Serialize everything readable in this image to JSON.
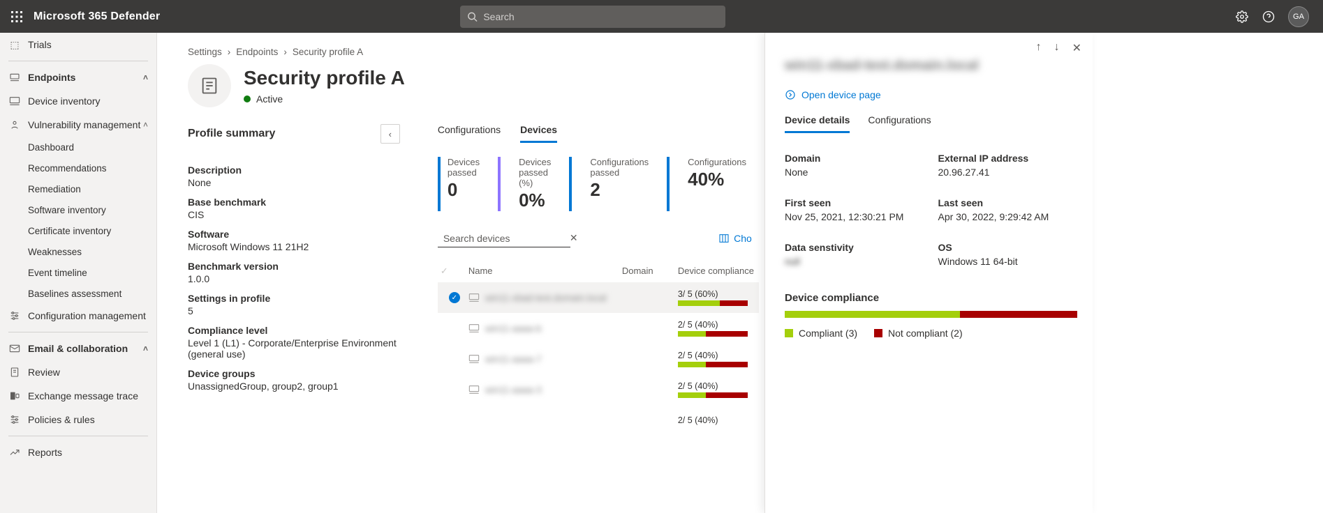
{
  "topbar": {
    "brand": "Microsoft 365 Defender",
    "search_placeholder": "Search",
    "avatar_initials": "GA"
  },
  "sidebar": {
    "trials": "Trials",
    "endpoints": "Endpoints",
    "device_inventory": "Device inventory",
    "vuln_mgmt": "Vulnerability management",
    "vuln_children": {
      "dashboard": "Dashboard",
      "recommendations": "Recommendations",
      "remediation": "Remediation",
      "software_inventory": "Software inventory",
      "certificate_inventory": "Certificate inventory",
      "weaknesses": "Weaknesses",
      "event_timeline": "Event timeline",
      "baselines": "Baselines assessment"
    },
    "config_mgmt": "Configuration management",
    "email_collab": "Email & collaboration",
    "review": "Review",
    "exchange_trace": "Exchange message trace",
    "policies_rules": "Policies & rules",
    "reports": "Reports"
  },
  "breadcrumb": {
    "a": "Settings",
    "b": "Endpoints",
    "c": "Security profile A"
  },
  "page": {
    "title": "Security profile A",
    "status": "Active"
  },
  "summary": {
    "heading": "Profile summary",
    "description_label": "Description",
    "description_value": "None",
    "benchmark_label": "Base benchmark",
    "benchmark_value": "CIS",
    "software_label": "Software",
    "software_value": "Microsoft Windows 11 21H2",
    "version_label": "Benchmark version",
    "version_value": "1.0.0",
    "settings_label": "Settings in profile",
    "settings_value": "5",
    "compliance_label": "Compliance level",
    "compliance_value": "Level 1 (L1) - Corporate/Enterprise Environment (general use)",
    "groups_label": "Device groups",
    "groups_value": "UnassignedGroup, group2, group1"
  },
  "tabs": {
    "configurations": "Configurations",
    "devices": "Devices"
  },
  "stats": [
    {
      "label": "Devices passed",
      "value": "0",
      "color": "#0078d4"
    },
    {
      "label": "Devices passed (%)",
      "value": "0%",
      "color": "#8e75ff"
    },
    {
      "label": "Configurations passed",
      "value": "2",
      "color": "#0078d4"
    },
    {
      "label": "Configurations",
      "value": "40%",
      "color": "#0078d4"
    }
  ],
  "devices_search_placeholder": "Search devices",
  "choose_columns": "Choose columns",
  "table": {
    "headers": {
      "name": "Name",
      "domain": "Domain",
      "compliance": "Device compliance"
    },
    "rows": [
      {
        "name": "win11-xbad-test.domain.local",
        "selected": true,
        "compliance_text": "3/ 5 (60%)",
        "green_pct": 60
      },
      {
        "name": "win11-aaaa-b",
        "selected": false,
        "compliance_text": "2/ 5 (40%)",
        "green_pct": 40
      },
      {
        "name": "win11-aaaa-7",
        "selected": false,
        "compliance_text": "2/ 5 (40%)",
        "green_pct": 40
      },
      {
        "name": "win11-aaaa-3",
        "selected": false,
        "compliance_text": "2/ 5 (40%)",
        "green_pct": 40
      }
    ],
    "overflow_text": "2/ 5 (40%)"
  },
  "flyout": {
    "title": "win11-xbad-test.domain.local",
    "open_link": "Open device page",
    "tabs": {
      "details": "Device details",
      "config": "Configurations"
    },
    "details": {
      "domain_label": "Domain",
      "domain_value": "None",
      "extip_label": "External IP address",
      "extip_value": "20.96.27.41",
      "firstseen_label": "First seen",
      "firstseen_value": "Nov 25, 2021, 12:30:21 PM",
      "lastseen_label": "Last seen",
      "lastseen_value": "Apr 30, 2022, 9:29:42 AM",
      "sensitivity_label": "Data senstivity",
      "sensitivity_value": "null",
      "os_label": "OS",
      "os_value": "Windows 11 64-bit"
    },
    "compliance_title": "Device compliance",
    "compliance_bar": {
      "green_pct": 60
    },
    "legend": {
      "compliant": "Compliant (3)",
      "noncompliant": "Not compliant (2)"
    },
    "colors": {
      "compliant": "#a4cf0c",
      "noncompliant": "#a80000"
    }
  }
}
